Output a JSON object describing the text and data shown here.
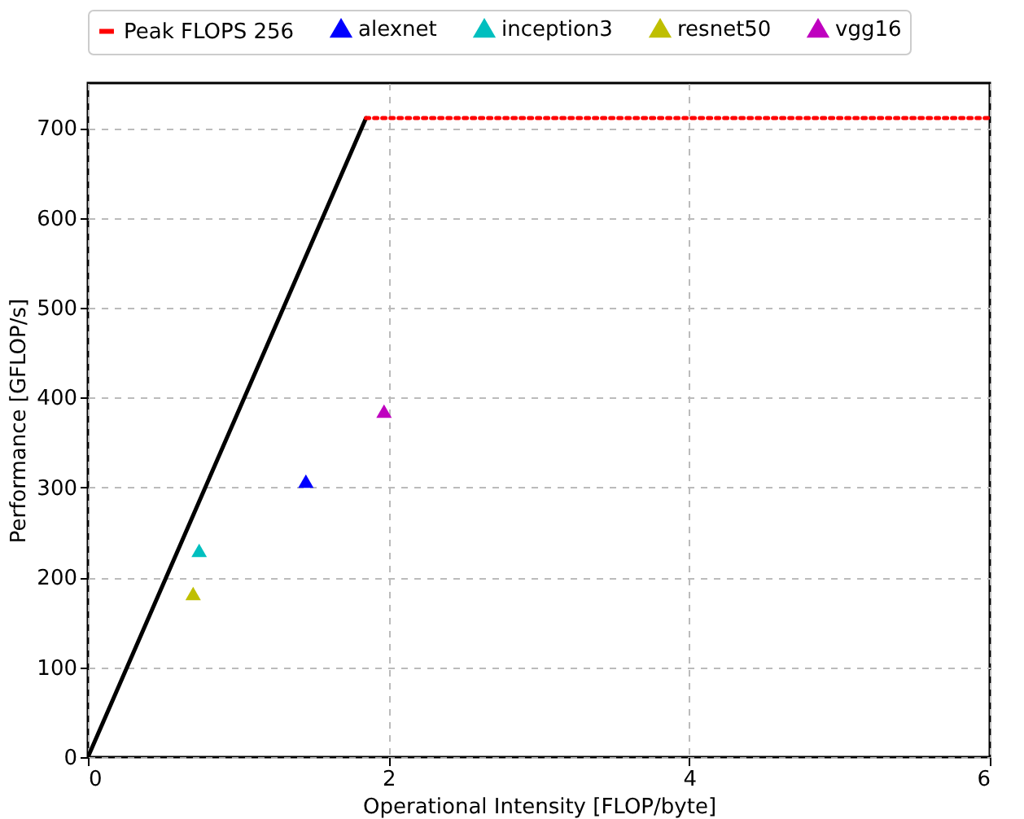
{
  "chart_data": {
    "type": "line",
    "xlabel": "Operational Intensity [FLOP/byte]",
    "ylabel": "Performance [GFLOP/s]",
    "xlim": [
      0,
      6
    ],
    "xticks": [
      0,
      2,
      4,
      6
    ],
    "ylim": [
      0,
      750
    ],
    "yticks": [
      0,
      100,
      200,
      300,
      400,
      500,
      600,
      700
    ],
    "grid": true,
    "legend": "top",
    "series": [
      {
        "color": "#000000",
        "x": [
          0,
          1.85
        ],
        "values": [
          0,
          711
        ],
        "line_style": "solid",
        "marker": "none"
      },
      {
        "name": "Peak FLOPS 256",
        "color": "#ff0000",
        "x": [
          1.85,
          6
        ],
        "values": [
          711,
          711
        ],
        "line_style": "dotted",
        "marker": "none"
      },
      {
        "type": "scatter",
        "name": "alexnet",
        "color": "#0000ff",
        "x": [
          1.45
        ],
        "values": [
          307
        ],
        "marker": "triangle"
      },
      {
        "type": "scatter",
        "name": "inception3",
        "color": "#00bfbf",
        "x": [
          0.74
        ],
        "values": [
          230
        ],
        "marker": "triangle"
      },
      {
        "type": "scatter",
        "name": "resnet50",
        "color": "#bfbf00",
        "x": [
          0.7
        ],
        "values": [
          182
        ],
        "marker": "triangle"
      },
      {
        "type": "scatter",
        "name": "vgg16",
        "color": "#bf00bf",
        "x": [
          1.97
        ],
        "values": [
          385
        ],
        "marker": "triangle"
      }
    ]
  }
}
